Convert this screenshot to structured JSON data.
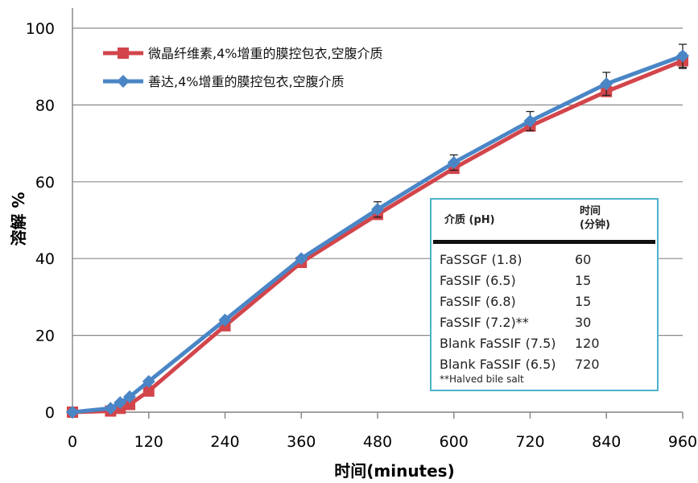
{
  "chart_data": {
    "type": "line",
    "title": "",
    "xlabel": "时间(minutes)",
    "ylabel": "溶解 %",
    "xlim": [
      0,
      960
    ],
    "ylim": [
      0,
      100
    ],
    "xticks": [
      0,
      120,
      240,
      360,
      480,
      600,
      720,
      840,
      960
    ],
    "yticks": [
      0,
      20,
      40,
      60,
      80,
      100
    ],
    "grid": "horizontal",
    "legend_position": "top-left",
    "series": [
      {
        "name": "微晶纤维素,4%增重的膜控包衣,空腹介质",
        "color": "#d2454b",
        "marker": "square",
        "x": [
          0,
          60,
          75,
          90,
          120,
          240,
          360,
          480,
          600,
          720,
          840,
          960
        ],
        "y": [
          0,
          0.3,
          1.0,
          2.0,
          5.5,
          22.5,
          39,
          51.5,
          63.5,
          74.5,
          83.5,
          91.5
        ],
        "error": [
          0,
          0,
          0,
          0,
          0,
          0,
          0,
          0,
          0,
          0,
          0,
          2.0
        ]
      },
      {
        "name": "善达,4%增重的膜控包衣,空腹介质",
        "color": "#4a86c6",
        "marker": "diamond",
        "x": [
          0,
          60,
          75,
          90,
          120,
          240,
          360,
          480,
          600,
          720,
          840,
          960
        ],
        "y": [
          0,
          1.0,
          2.5,
          4.0,
          8.0,
          24.0,
          40,
          52.8,
          65.0,
          75.8,
          85.5,
          92.8
        ],
        "error": [
          0,
          0,
          0,
          0,
          0,
          0,
          0,
          2.0,
          2.0,
          2.5,
          3.0,
          3.0
        ]
      }
    ]
  },
  "media_table": {
    "headers": [
      "介质 (pH)",
      "时间\n(分钟)"
    ],
    "rows": [
      [
        "FaSSGF (1.8)",
        "60"
      ],
      [
        "FaSSIF (6.5)",
        "15"
      ],
      [
        "FaSSIF (6.8)",
        "15"
      ],
      [
        "FaSSIF (7.2)**",
        "30"
      ],
      [
        "Blank FaSSIF (7.5)",
        "120"
      ],
      [
        "Blank FaSSIF (6.5)",
        "720"
      ]
    ],
    "note": "**Halved bile salt"
  }
}
